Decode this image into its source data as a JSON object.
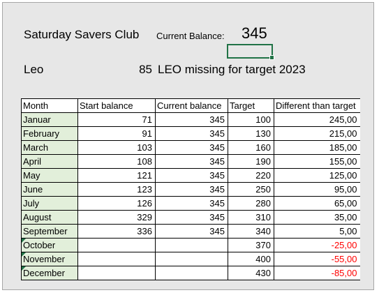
{
  "header": {
    "club_title": "Saturday Savers Club",
    "balance_label": "Current Balance:",
    "balance_value": "345"
  },
  "member": {
    "name": "Leo",
    "missing_amount": "85",
    "missing_text": "LEO missing for target 2023"
  },
  "table": {
    "columns": [
      "Month",
      "Start balance",
      "Current balance",
      "Target",
      "Different than target"
    ],
    "rows": [
      {
        "month": "Januar",
        "start": "71",
        "current": "345",
        "target": "100",
        "diff": "245,00"
      },
      {
        "month": "February",
        "start": "91",
        "current": "345",
        "target": "130",
        "diff": "215,00"
      },
      {
        "month": "March",
        "start": "103",
        "current": "345",
        "target": "160",
        "diff": "185,00"
      },
      {
        "month": "April",
        "start": "108",
        "current": "345",
        "target": "190",
        "diff": "155,00"
      },
      {
        "month": "May",
        "start": "121",
        "current": "345",
        "target": "220",
        "diff": "125,00"
      },
      {
        "month": "June",
        "start": "123",
        "current": "345",
        "target": "250",
        "diff": "95,00"
      },
      {
        "month": "July",
        "start": "126",
        "current": "345",
        "target": "280",
        "diff": "65,00"
      },
      {
        "month": "August",
        "start": "329",
        "current": "345",
        "target": "310",
        "diff": "35,00"
      },
      {
        "month": "September",
        "start": "336",
        "current": "345",
        "target": "340",
        "diff": "5,00"
      },
      {
        "month": "October",
        "start": "",
        "current": "",
        "target": "370",
        "diff": "-25,00"
      },
      {
        "month": "November",
        "start": "",
        "current": "",
        "target": "400",
        "diff": "-55,00"
      },
      {
        "month": "December",
        "start": "",
        "current": "",
        "target": "430",
        "diff": "-85,00"
      }
    ]
  },
  "colors": {
    "negative": "#ff0000",
    "month_fill": "#e2efda",
    "selection": "#217346",
    "background": "#e7e7e7"
  }
}
